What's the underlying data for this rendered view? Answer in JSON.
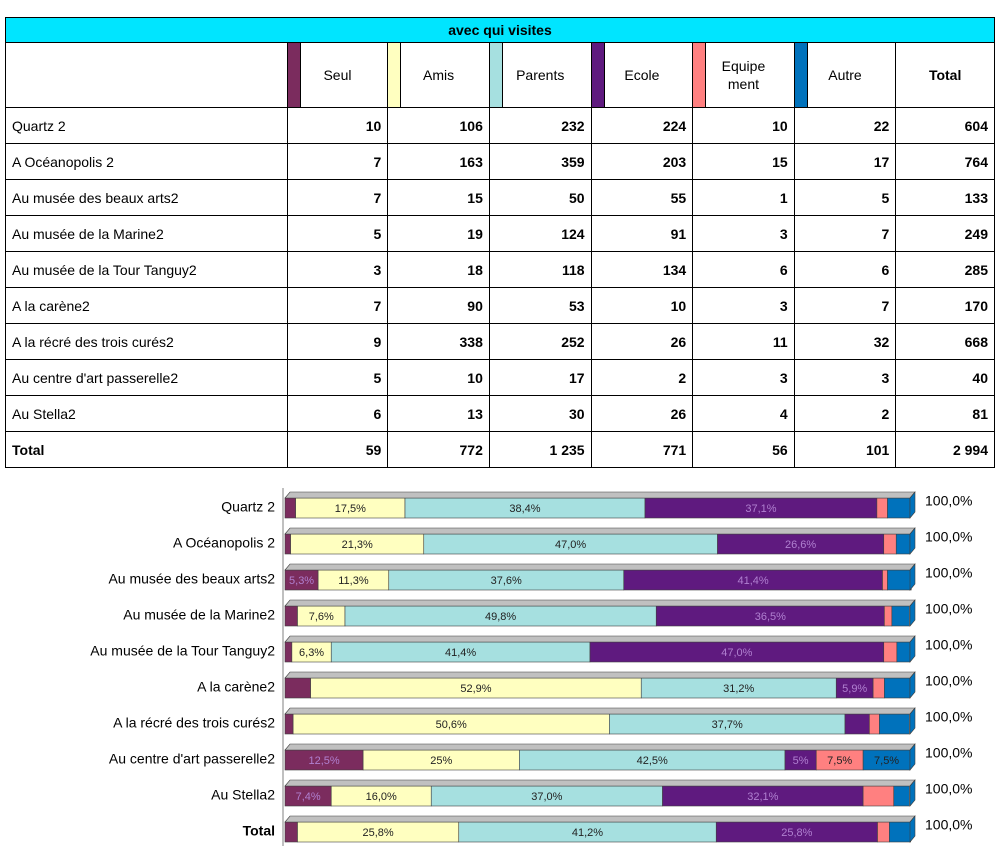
{
  "table": {
    "title": "avec qui visites",
    "total_header": "Total",
    "rows": [
      [
        "Quartz 2",
        10,
        106,
        232,
        224,
        10,
        22,
        604
      ],
      [
        "A Océanopolis 2",
        7,
        163,
        359,
        203,
        15,
        17,
        764
      ],
      [
        "Au musée des beaux arts2",
        7,
        15,
        50,
        55,
        1,
        5,
        133
      ],
      [
        "Au musée de la Marine2",
        5,
        19,
        124,
        91,
        3,
        7,
        249
      ],
      [
        "Au musée de la Tour Tanguy2",
        3,
        18,
        118,
        134,
        6,
        6,
        285
      ],
      [
        "A la carène2",
        7,
        90,
        53,
        10,
        3,
        7,
        170
      ],
      [
        "A la récré des trois curés2",
        9,
        338,
        252,
        26,
        11,
        32,
        668
      ],
      [
        "Au centre d'art passerelle2",
        5,
        10,
        17,
        2,
        3,
        3,
        40
      ],
      [
        "Au Stella2",
        6,
        13,
        30,
        26,
        4,
        2,
        81
      ],
      [
        "Total",
        59,
        772,
        "1 235",
        771,
        56,
        101,
        "2 994"
      ]
    ]
  },
  "chart_data": {
    "type": "bar",
    "orientation": "horizontal",
    "stacked": true,
    "categories": [
      "Quartz 2",
      "A Océanopolis 2",
      "Au musée des beaux arts2",
      "Au musée de la Marine2",
      "Au musée de la Tour Tanguy2",
      "A la carène2",
      "A la récré des trois curés2",
      "Au centre d'art passerelle2",
      "Au Stella2",
      "Total"
    ],
    "xlim": [
      0,
      100
    ],
    "totals": [
      100,
      100,
      100,
      100,
      100,
      100,
      100,
      100,
      100,
      100
    ],
    "total_labels": [
      "100,0%",
      "100,0%",
      "100,0%",
      "100,0%",
      "100,0%",
      "100,0%",
      "100,0%",
      "100,0%",
      "100,0%",
      "100,0%"
    ],
    "series": [
      {
        "name": "Seul",
        "color": "#7b2c5e",
        "values": [
          1.7,
          0.9,
          5.3,
          2.0,
          1.1,
          4.1,
          1.3,
          12.5,
          7.4,
          2.0
        ],
        "value_labels": [
          null,
          null,
          "5,3%",
          null,
          null,
          null,
          null,
          "12,5%",
          "7,4%",
          null
        ]
      },
      {
        "name": "Amis",
        "color": "#ffffc0",
        "values": [
          17.5,
          21.3,
          11.3,
          7.6,
          6.3,
          52.9,
          50.6,
          25,
          16.0,
          25.8
        ],
        "value_labels": [
          "17,5%",
          "21,3%",
          "11,3%",
          "7,6%",
          "6,3%",
          "52,9%",
          "50,6%",
          "25%",
          "16,0%",
          "25,8%"
        ]
      },
      {
        "name": "Parents",
        "color": "#a6e0e0",
        "values": [
          38.4,
          47.0,
          37.6,
          49.8,
          41.4,
          31.2,
          37.7,
          42.5,
          37.0,
          41.2
        ],
        "value_labels": [
          "38,4%",
          "47,0%",
          "37,6%",
          "49,8%",
          "41,4%",
          "31,2%",
          "37,7%",
          "42,5%",
          "37,0%",
          "41,2%"
        ]
      },
      {
        "name": "Ecole",
        "color": "#5f1a7f",
        "values": [
          37.1,
          26.6,
          41.4,
          36.5,
          47.0,
          5.9,
          3.9,
          5,
          32.1,
          25.8
        ],
        "value_labels": [
          "37,1%",
          "26,6%",
          "41,4%",
          "36,5%",
          "47,0%",
          "5,9%",
          null,
          "5%",
          "32,1%",
          "25,8%"
        ]
      },
      {
        "name": "Equipement",
        "color": "#ff8080",
        "values": [
          1.7,
          2.0,
          0.8,
          1.2,
          2.1,
          1.8,
          1.6,
          7.5,
          4.9,
          1.9
        ],
        "value_labels": [
          null,
          null,
          null,
          null,
          null,
          null,
          null,
          "7,5%",
          null,
          null
        ]
      },
      {
        "name": "Autre",
        "color": "#0072bc",
        "values": [
          3.6,
          2.2,
          3.8,
          2.8,
          2.1,
          4.1,
          4.8,
          7.5,
          2.5,
          3.4
        ],
        "value_labels": [
          null,
          null,
          null,
          null,
          null,
          null,
          null,
          "7,5%",
          null,
          null
        ]
      }
    ]
  }
}
